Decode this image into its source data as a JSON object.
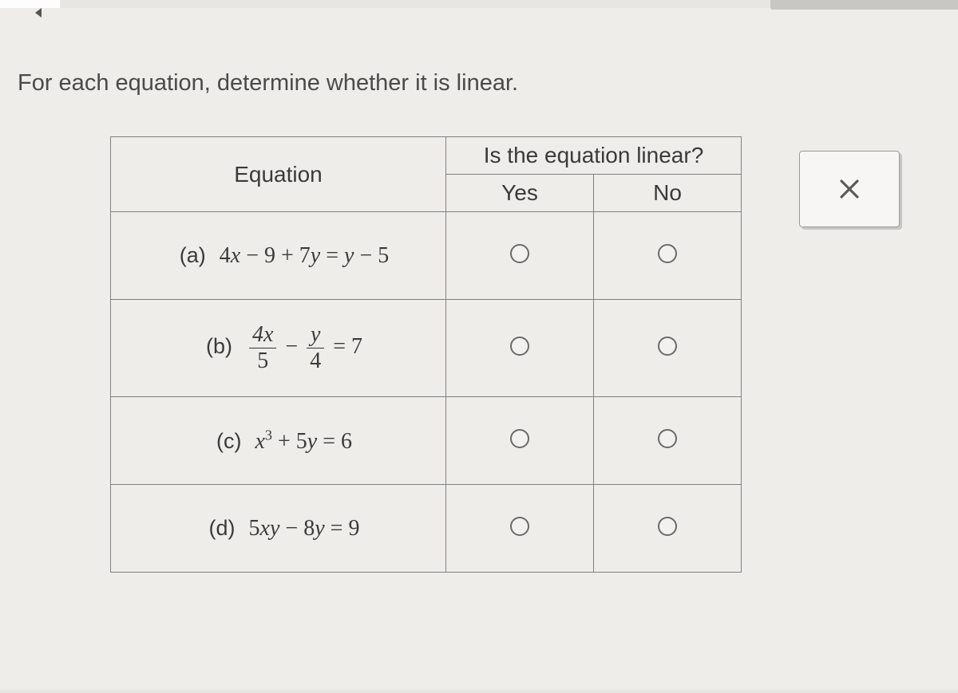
{
  "prompt": "For each equation, determine whether it is linear.",
  "table": {
    "headers": {
      "equation": "Equation",
      "linear_question": "Is the equation linear?",
      "yes": "Yes",
      "no": "No"
    },
    "rows": [
      {
        "label": "(a)",
        "equation_html": "4<span class='it'>x</span> − 9 + 7<span class='it'>y</span> = <span class='it'>y</span> − 5"
      },
      {
        "label": "(b)",
        "equation_html": "<span class='frac'><span class='num'>4<span class=\"it\">x</span></span><span class='den'>5</span></span> − <span class='frac'><span class='num'><span class=\"it\">y</span></span><span class='den'>4</span></span> = 7"
      },
      {
        "label": "(c)",
        "equation_html": "<span class='it'>x</span><sup>3</sup> + 5<span class='it'>y</span> = 6"
      },
      {
        "label": "(d)",
        "equation_html": "5<span class='it'>x</span><span class='it'>y</span> − 8<span class='it'>y</span> = 9"
      }
    ]
  },
  "colors": {
    "page_bg": "#efedea",
    "border": "#808080",
    "text": "#3a3a3a",
    "radio_border": "#6a6a6a"
  },
  "close_button_label": "Close"
}
